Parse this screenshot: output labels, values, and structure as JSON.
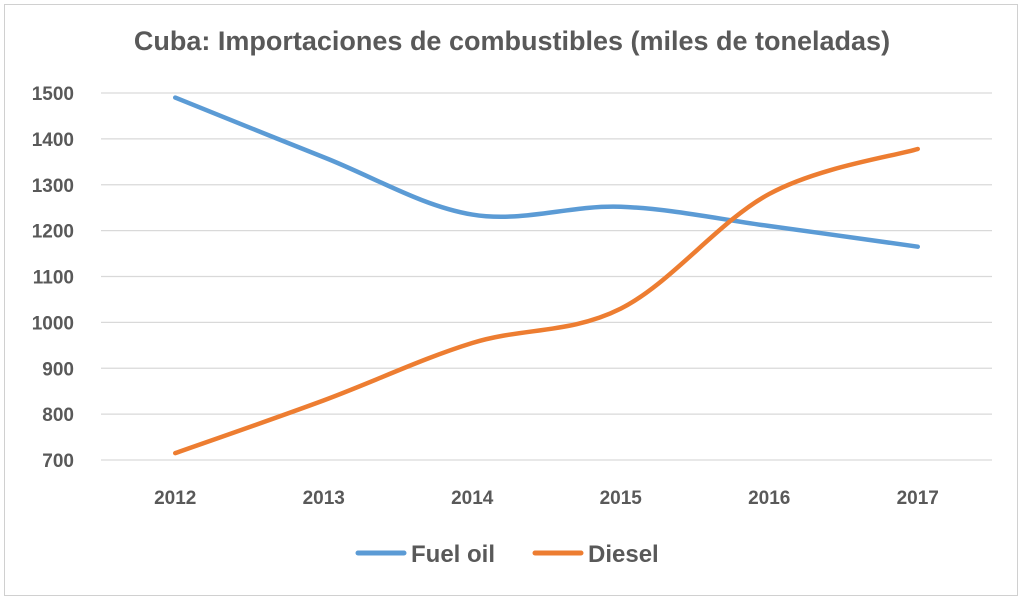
{
  "chart_data": {
    "type": "line",
    "title": "Cuba: Importaciones de combustibles (miles de toneladas)",
    "xlabel": "",
    "ylabel": "",
    "categories": [
      "2012",
      "2013",
      "2014",
      "2015",
      "2016",
      "2017"
    ],
    "series": [
      {
        "name": "Fuel oil",
        "color": "#5b9bd5",
        "values": [
          1490,
          1360,
          1235,
          1252,
          1210,
          1165
        ]
      },
      {
        "name": "Diesel",
        "color": "#ed7d31",
        "values": [
          715,
          830,
          955,
          1030,
          1280,
          1378
        ]
      }
    ],
    "ylim": [
      700,
      1500
    ],
    "yticks": [
      700,
      800,
      900,
      1000,
      1100,
      1200,
      1300,
      1400,
      1500
    ],
    "grid": true,
    "legend": "bottom",
    "smooth": true
  }
}
